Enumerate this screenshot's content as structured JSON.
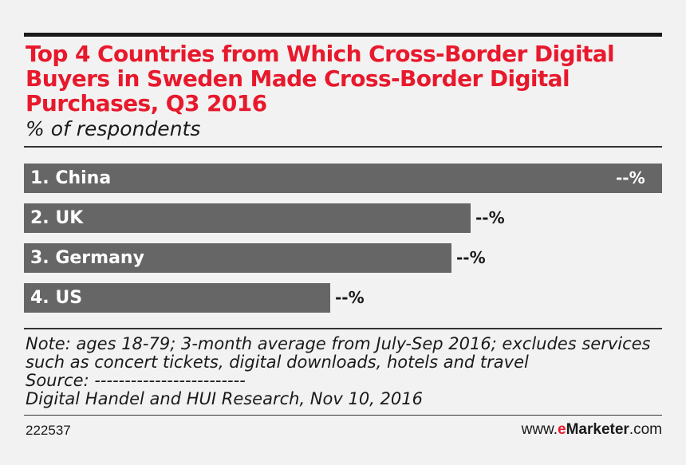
{
  "chart_data": {
    "type": "bar",
    "orientation": "horizontal",
    "title": "Top 4 Countries from Which Cross-Border Digital Buyers in Sweden Made Cross-Border Digital Purchases, Q3 2016",
    "subtitle": "% of respondents",
    "categories": [
      "1. China",
      "2. UK",
      "3. Germany",
      "4. US"
    ],
    "values": [
      100,
      70,
      67,
      48
    ],
    "value_labels": [
      "--%",
      "--%",
      "--%",
      "--%"
    ],
    "bar_color": "#666666",
    "grid": false
  },
  "notes": {
    "line1": "Note: ages 18-79; 3-month average from July-Sep 2016; excludes services",
    "line2": "such as concert tickets, digital downloads, hotels and travel",
    "source_label": "Source: -------------------------",
    "source": "Digital Handel and HUI Research, Nov 10, 2016"
  },
  "footer": {
    "chart_id": "222537",
    "brand_prefix": "www.",
    "brand_e": "e",
    "brand_name": "Marketer",
    "brand_suffix": ".com"
  },
  "colors": {
    "accent": "#e8192c",
    "text": "#1a1a1a",
    "background": "#f2f2f2"
  }
}
